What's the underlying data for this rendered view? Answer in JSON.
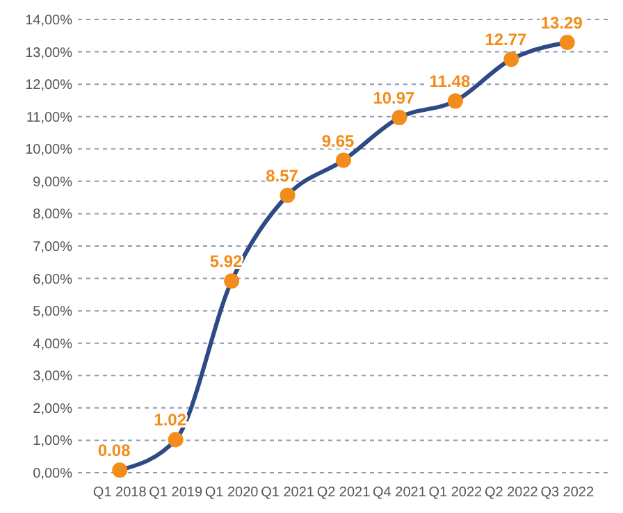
{
  "chart_data": {
    "type": "line",
    "categories": [
      "Q1 2018",
      "Q1 2019",
      "Q1 2020",
      "Q1 2021",
      "Q2 2021",
      "Q4 2021",
      "Q1 2022",
      "Q2 2022",
      "Q3 2022"
    ],
    "series": [
      {
        "color": "#2e4a86",
        "values": [
          0.08,
          1.02,
          5.92,
          8.57,
          9.65,
          10.97,
          11.48,
          12.77,
          13.29
        ]
      }
    ],
    "ylim": [
      0,
      14
    ],
    "yticks": [
      {
        "value": 0,
        "label": "0,00%"
      },
      {
        "value": 1,
        "label": "1,00%"
      },
      {
        "value": 2,
        "label": "2,00%"
      },
      {
        "value": 3,
        "label": "3,00%"
      },
      {
        "value": 4,
        "label": "4,00%"
      },
      {
        "value": 5,
        "label": "5,00%"
      },
      {
        "value": 6,
        "label": "6,00%"
      },
      {
        "value": 7,
        "label": "7,00%"
      },
      {
        "value": 8,
        "label": "8,00%"
      },
      {
        "value": 9,
        "label": "9,00%"
      },
      {
        "value": 10,
        "label": "10,00%"
      },
      {
        "value": 11,
        "label": "11,00%"
      },
      {
        "value": 12,
        "label": "12,00%"
      },
      {
        "value": 13,
        "label": "13,00%"
      },
      {
        "value": 14,
        "label": "14,00%"
      }
    ],
    "grid": "y",
    "marker": "circle",
    "line_style": "solid",
    "data_labels": true
  }
}
